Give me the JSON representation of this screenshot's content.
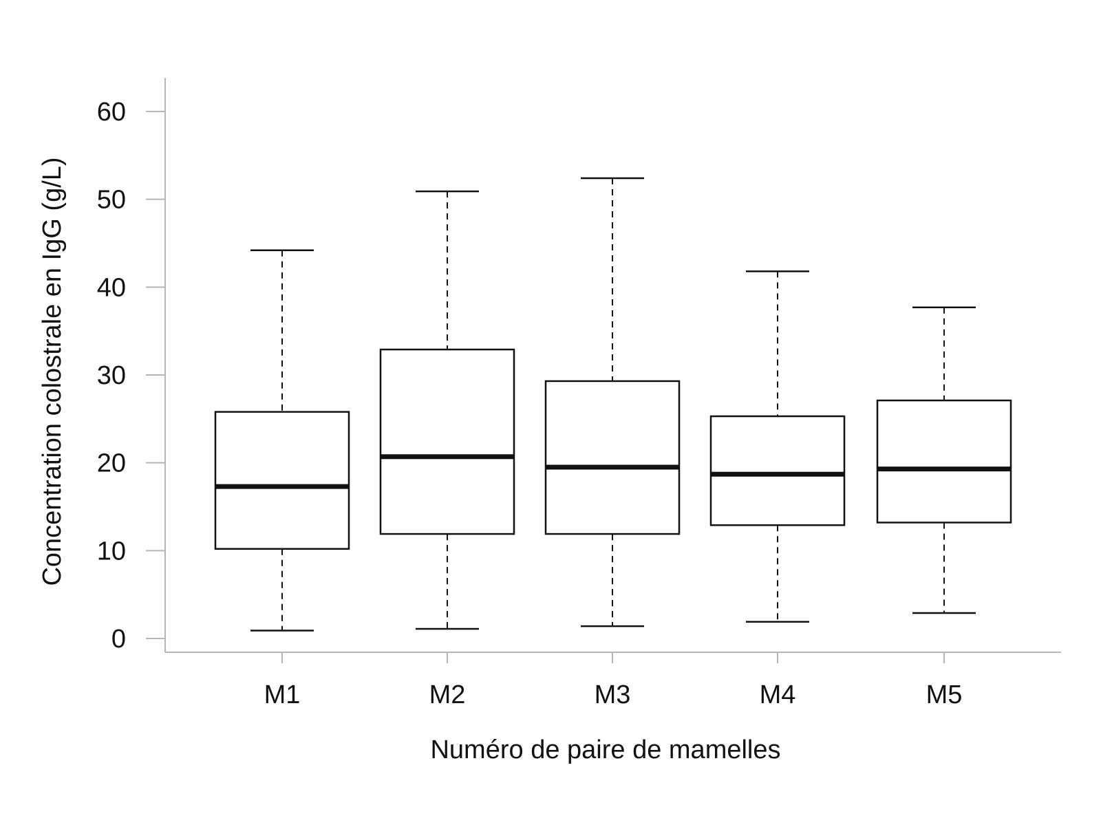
{
  "chart_data": {
    "type": "boxplot",
    "xlabel": "Numéro de paire de mamelles",
    "ylabel": "Concentration colostrale en IgG (g/L)",
    "ylim": [
      -1.8,
      63.8
    ],
    "yticks": [
      0,
      10,
      20,
      30,
      40,
      50,
      60
    ],
    "categories": [
      "M1",
      "M2",
      "M3",
      "M4",
      "M5"
    ],
    "boxes": [
      {
        "label": "M1",
        "whisker_low": 0.9,
        "q1": 10.2,
        "median": 17.3,
        "q3": 25.8,
        "whisker_high": 44.2
      },
      {
        "label": "M2",
        "whisker_low": 1.1,
        "q1": 11.9,
        "median": 20.7,
        "q3": 32.9,
        "whisker_high": 50.9
      },
      {
        "label": "M3",
        "whisker_low": 1.4,
        "q1": 11.9,
        "median": 19.5,
        "q3": 29.3,
        "whisker_high": 52.4
      },
      {
        "label": "M4",
        "whisker_low": 1.9,
        "q1": 12.9,
        "median": 18.7,
        "q3": 25.3,
        "whisker_high": 41.8
      },
      {
        "label": "M5",
        "whisker_low": 2.9,
        "q1": 13.2,
        "median": 19.3,
        "q3": 27.1,
        "whisker_high": 37.7
      }
    ],
    "grid": false,
    "colors": {
      "box_fill": "#ffffff",
      "stroke": "#111111",
      "axis": "#b5b5b5"
    }
  }
}
